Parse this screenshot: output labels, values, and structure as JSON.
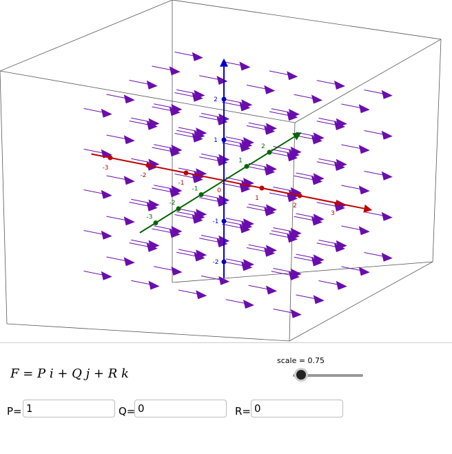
{
  "formula": "F = P i + Q j + R k",
  "slider": {
    "label": "scale = 0.75"
  },
  "inputs": [
    {
      "label": "P=",
      "value": "1"
    },
    {
      "label": "Q=",
      "value": "0"
    },
    {
      "label": "R=",
      "value": "0"
    }
  ],
  "axes": {
    "x": {
      "ticks": [
        -3,
        -2,
        -1,
        0,
        1,
        2,
        3
      ]
    },
    "y": {
      "ticks": [
        -3,
        -2,
        -1,
        1,
        2
      ]
    },
    "z": {
      "ticks": [
        2,
        1,
        -1,
        -2
      ]
    }
  }
}
